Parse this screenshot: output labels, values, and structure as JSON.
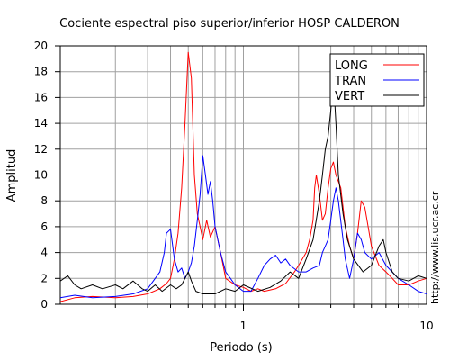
{
  "chart_data": {
    "type": "line",
    "title": "Cociente espectral piso superior/inferior  HOSP CALDERON",
    "xlabel": "Periodo (s)",
    "ylabel": "Amplitud",
    "xscale": "log",
    "xlim": [
      0.1,
      10
    ],
    "ylim": [
      0,
      20
    ],
    "x_ticks": [
      "1",
      "10"
    ],
    "y_ticks": [
      "0",
      "2",
      "4",
      "6",
      "8",
      "10",
      "12",
      "14",
      "16",
      "18",
      "20"
    ],
    "grid": true,
    "legend_position": "top-right",
    "series": [
      {
        "name": "LONG",
        "color": "#ff0000",
        "points": [
          [
            0.1,
            0.2
          ],
          [
            0.12,
            0.5
          ],
          [
            0.15,
            0.6
          ],
          [
            0.2,
            0.5
          ],
          [
            0.25,
            0.6
          ],
          [
            0.3,
            0.8
          ],
          [
            0.35,
            1.2
          ],
          [
            0.38,
            1.6
          ],
          [
            0.4,
            2.0
          ],
          [
            0.42,
            3.5
          ],
          [
            0.44,
            5.5
          ],
          [
            0.46,
            9.0
          ],
          [
            0.48,
            14.0
          ],
          [
            0.5,
            19.5
          ],
          [
            0.52,
            17.5
          ],
          [
            0.54,
            10.0
          ],
          [
            0.56,
            7.0
          ],
          [
            0.58,
            6.0
          ],
          [
            0.6,
            5.0
          ],
          [
            0.63,
            6.5
          ],
          [
            0.66,
            5.2
          ],
          [
            0.7,
            6.0
          ],
          [
            0.75,
            4.0
          ],
          [
            0.8,
            2.0
          ],
          [
            0.9,
            1.5
          ],
          [
            1.0,
            1.3
          ],
          [
            1.1,
            1.0
          ],
          [
            1.2,
            1.2
          ],
          [
            1.3,
            1.0
          ],
          [
            1.5,
            1.2
          ],
          [
            1.7,
            1.6
          ],
          [
            1.9,
            2.5
          ],
          [
            2.0,
            3.0
          ],
          [
            2.2,
            4.0
          ],
          [
            2.3,
            5.0
          ],
          [
            2.4,
            6.5
          ],
          [
            2.45,
            9.0
          ],
          [
            2.5,
            10.0
          ],
          [
            2.6,
            8.5
          ],
          [
            2.7,
            6.5
          ],
          [
            2.8,
            7.0
          ],
          [
            2.9,
            9.0
          ],
          [
            3.0,
            10.5
          ],
          [
            3.1,
            11.0
          ],
          [
            3.2,
            10.0
          ],
          [
            3.4,
            9.0
          ],
          [
            3.6,
            6.0
          ],
          [
            3.8,
            4.5
          ],
          [
            4.0,
            3.5
          ],
          [
            4.2,
            5.5
          ],
          [
            4.4,
            8.0
          ],
          [
            4.6,
            7.5
          ],
          [
            4.8,
            6.0
          ],
          [
            5.0,
            4.5
          ],
          [
            5.5,
            3.0
          ],
          [
            6.0,
            2.5
          ],
          [
            6.5,
            2.0
          ],
          [
            7.0,
            1.5
          ],
          [
            8.0,
            1.5
          ],
          [
            9.0,
            1.8
          ],
          [
            10.0,
            2.0
          ]
        ]
      },
      {
        "name": "TRAN",
        "color": "#0000ff",
        "points": [
          [
            0.1,
            0.5
          ],
          [
            0.12,
            0.7
          ],
          [
            0.15,
            0.5
          ],
          [
            0.2,
            0.6
          ],
          [
            0.25,
            0.8
          ],
          [
            0.3,
            1.2
          ],
          [
            0.35,
            2.5
          ],
          [
            0.37,
            4.0
          ],
          [
            0.38,
            5.5
          ],
          [
            0.4,
            5.8
          ],
          [
            0.42,
            3.5
          ],
          [
            0.44,
            2.5
          ],
          [
            0.46,
            2.8
          ],
          [
            0.48,
            2.0
          ],
          [
            0.5,
            2.5
          ],
          [
            0.52,
            3.2
          ],
          [
            0.54,
            4.5
          ],
          [
            0.56,
            6.5
          ],
          [
            0.58,
            8.5
          ],
          [
            0.6,
            11.5
          ],
          [
            0.62,
            10.0
          ],
          [
            0.64,
            8.5
          ],
          [
            0.66,
            9.5
          ],
          [
            0.68,
            8.0
          ],
          [
            0.7,
            6.0
          ],
          [
            0.75,
            4.0
          ],
          [
            0.8,
            2.5
          ],
          [
            0.85,
            2.0
          ],
          [
            0.9,
            1.5
          ],
          [
            1.0,
            1.0
          ],
          [
            1.1,
            1.0
          ],
          [
            1.2,
            2.0
          ],
          [
            1.3,
            3.0
          ],
          [
            1.4,
            3.5
          ],
          [
            1.5,
            3.8
          ],
          [
            1.6,
            3.2
          ],
          [
            1.7,
            3.5
          ],
          [
            1.8,
            3.0
          ],
          [
            2.0,
            2.5
          ],
          [
            2.2,
            2.5
          ],
          [
            2.4,
            2.8
          ],
          [
            2.6,
            3.0
          ],
          [
            2.7,
            4.0
          ],
          [
            2.8,
            4.5
          ],
          [
            2.9,
            5.0
          ],
          [
            3.0,
            6.5
          ],
          [
            3.1,
            8.0
          ],
          [
            3.2,
            9.0
          ],
          [
            3.3,
            8.0
          ],
          [
            3.5,
            5.0
          ],
          [
            3.6,
            3.5
          ],
          [
            3.8,
            2.0
          ],
          [
            4.0,
            3.5
          ],
          [
            4.2,
            5.5
          ],
          [
            4.4,
            5.0
          ],
          [
            4.6,
            4.0
          ],
          [
            5.0,
            3.5
          ],
          [
            5.5,
            4.0
          ],
          [
            6.0,
            3.0
          ],
          [
            7.0,
            2.0
          ],
          [
            8.0,
            1.5
          ],
          [
            9.0,
            1.0
          ],
          [
            10.0,
            0.8
          ]
        ]
      },
      {
        "name": "VERT",
        "color": "#000000",
        "points": [
          [
            0.1,
            1.8
          ],
          [
            0.11,
            2.2
          ],
          [
            0.12,
            1.5
          ],
          [
            0.13,
            1.2
          ],
          [
            0.15,
            1.5
          ],
          [
            0.17,
            1.2
          ],
          [
            0.2,
            1.5
          ],
          [
            0.22,
            1.2
          ],
          [
            0.25,
            1.8
          ],
          [
            0.28,
            1.2
          ],
          [
            0.3,
            1.0
          ],
          [
            0.33,
            1.5
          ],
          [
            0.36,
            1.0
          ],
          [
            0.4,
            1.5
          ],
          [
            0.43,
            1.2
          ],
          [
            0.46,
            1.5
          ],
          [
            0.5,
            2.5
          ],
          [
            0.52,
            1.8
          ],
          [
            0.55,
            1.0
          ],
          [
            0.6,
            0.8
          ],
          [
            0.7,
            0.8
          ],
          [
            0.8,
            1.2
          ],
          [
            0.9,
            1.0
          ],
          [
            1.0,
            1.5
          ],
          [
            1.2,
            1.0
          ],
          [
            1.4,
            1.3
          ],
          [
            1.6,
            1.8
          ],
          [
            1.8,
            2.5
          ],
          [
            2.0,
            2.0
          ],
          [
            2.2,
            3.5
          ],
          [
            2.4,
            5.0
          ],
          [
            2.6,
            8.0
          ],
          [
            2.7,
            10.0
          ],
          [
            2.8,
            12.0
          ],
          [
            2.9,
            13.0
          ],
          [
            3.0,
            15.0
          ],
          [
            3.1,
            17.5
          ],
          [
            3.2,
            14.0
          ],
          [
            3.3,
            10.0
          ],
          [
            3.5,
            7.0
          ],
          [
            3.7,
            5.0
          ],
          [
            4.0,
            3.5
          ],
          [
            4.5,
            2.5
          ],
          [
            5.0,
            3.0
          ],
          [
            5.5,
            4.5
          ],
          [
            5.8,
            5.0
          ],
          [
            6.0,
            4.0
          ],
          [
            6.5,
            2.5
          ],
          [
            7.0,
            2.0
          ],
          [
            8.0,
            1.8
          ],
          [
            9.0,
            2.2
          ],
          [
            10.0,
            2.0
          ]
        ]
      }
    ]
  },
  "side_text": "http://www.lis.ucr.ac.cr"
}
